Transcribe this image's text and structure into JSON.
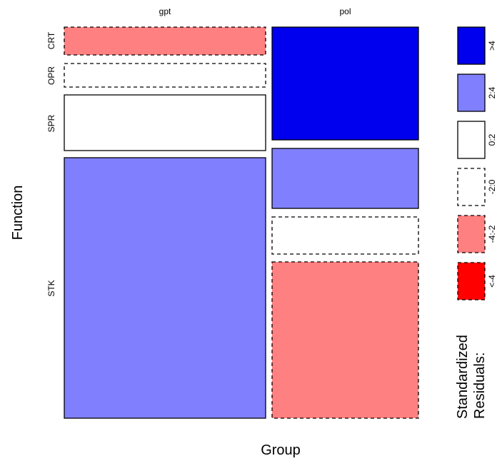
{
  "chart_data": {
    "type": "mosaic",
    "xlabel": "Group",
    "ylabel": "Function",
    "columns": [
      {
        "name": "gpt",
        "cells": [
          {
            "row": "CRT",
            "residual_class": "-4:-2"
          },
          {
            "row": "OPR",
            "residual_class": "-2:0"
          },
          {
            "row": "SPR",
            "residual_class": "0:2"
          },
          {
            "row": "STK",
            "residual_class": "2:4"
          }
        ]
      },
      {
        "name": "pol",
        "cells": [
          {
            "row": "CRT",
            "residual_class": ">4"
          },
          {
            "row": "OPR",
            "residual_class": "2:4"
          },
          {
            "row": "SPR",
            "residual_class": "-2:0"
          },
          {
            "row": "STK",
            "residual_class": "-4:-2"
          }
        ]
      }
    ],
    "row_labels": [
      "CRT",
      "OPR",
      "SPR",
      "STK"
    ],
    "legend": {
      "title_line1": "Standardized",
      "title_line2": "Residuals:",
      "placement": "right",
      "entries": [
        {
          "label": ">4",
          "color": "#0000EE",
          "dashed": false
        },
        {
          "label": "2:4",
          "color": "#8080FF",
          "dashed": false
        },
        {
          "label": "0:2",
          "color": "#FFFFFF",
          "dashed": false
        },
        {
          "label": "-2:0",
          "color": "#FFFFFF",
          "dashed": true
        },
        {
          "label": "-4:-2",
          "color": "#FF8080",
          "dashed": true
        },
        {
          "label": "<-4",
          "color": "#FF0000",
          "dashed": true
        }
      ]
    }
  }
}
